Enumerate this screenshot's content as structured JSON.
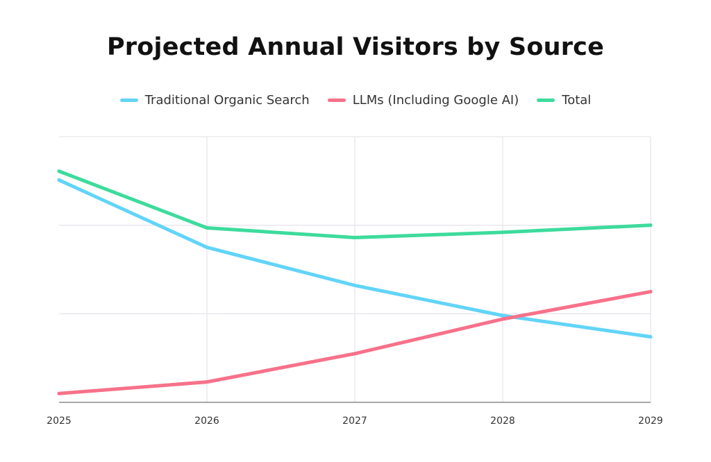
{
  "chart_data": {
    "type": "line",
    "title": "Projected Annual Visitors by Source",
    "xlabel": "",
    "ylabel": "",
    "x": [
      "2025",
      "2026",
      "2027",
      "2028",
      "2029"
    ],
    "ylim": [
      0,
      3
    ],
    "y_gridlines": [
      1,
      2,
      3
    ],
    "grid": true,
    "legend_position": "top-center",
    "series": [
      {
        "name": "Traditional Organic Search",
        "color": "#62d4f8",
        "values": [
          2.51,
          1.75,
          1.32,
          0.98,
          0.74
        ]
      },
      {
        "name": "LLMs (Including Google AI)",
        "color": "#f7718a",
        "values": [
          0.1,
          0.23,
          0.55,
          0.94,
          1.25
        ]
      },
      {
        "name": "Total",
        "color": "#3ddb9c",
        "values": [
          2.61,
          1.97,
          1.86,
          1.92,
          2.0
        ]
      }
    ]
  }
}
